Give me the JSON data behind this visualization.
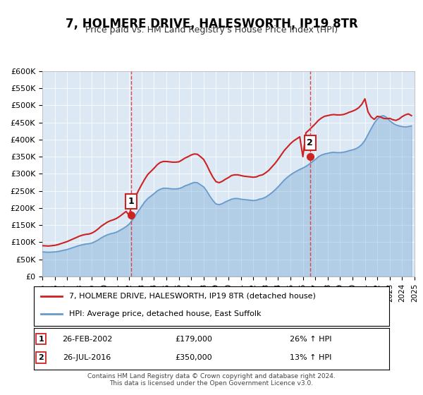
{
  "title_line1": "7, HOLMERE DRIVE, HALESWORTH, IP19 8TR",
  "title_line2": "Price paid vs. HM Land Registry's House Price Index (HPI)",
  "xlabel": "",
  "ylabel": "",
  "ylim": [
    0,
    600000
  ],
  "yticks": [
    0,
    50000,
    100000,
    150000,
    200000,
    250000,
    300000,
    350000,
    400000,
    450000,
    500000,
    550000,
    600000
  ],
  "ytick_labels": [
    "£0",
    "£50K",
    "£100K",
    "£150K",
    "£200K",
    "£250K",
    "£300K",
    "£350K",
    "£400K",
    "£450K",
    "£500K",
    "£550K",
    "£600K"
  ],
  "hpi_color": "#6699cc",
  "property_color": "#cc2222",
  "marker_color": "#cc2222",
  "vline_color": "#dd4444",
  "background_color": "#dce9f5",
  "plot_bg": "#dce9f5",
  "legend_label_property": "7, HOLMERE DRIVE, HALESWORTH, IP19 8TR (detached house)",
  "legend_label_hpi": "HPI: Average price, detached house, East Suffolk",
  "purchase1_date": "26-FEB-2002",
  "purchase1_price": "£179,000",
  "purchase1_hpi": "26% ↑ HPI",
  "purchase1_year": 2002.15,
  "purchase1_value": 179000,
  "purchase2_date": "26-JUL-2016",
  "purchase2_price": "£350,000",
  "purchase2_hpi": "13% ↑ HPI",
  "purchase2_year": 2016.57,
  "purchase2_value": 350000,
  "footer_line1": "Contains HM Land Registry data © Crown copyright and database right 2024.",
  "footer_line2": "This data is licensed under the Open Government Licence v3.0.",
  "hpi_years": [
    1995.0,
    1995.25,
    1995.5,
    1995.75,
    1996.0,
    1996.25,
    1996.5,
    1996.75,
    1997.0,
    1997.25,
    1997.5,
    1997.75,
    1998.0,
    1998.25,
    1998.5,
    1998.75,
    1999.0,
    1999.25,
    1999.5,
    1999.75,
    2000.0,
    2000.25,
    2000.5,
    2000.75,
    2001.0,
    2001.25,
    2001.5,
    2001.75,
    2002.0,
    2002.25,
    2002.5,
    2002.75,
    2003.0,
    2003.25,
    2003.5,
    2003.75,
    2004.0,
    2004.25,
    2004.5,
    2004.75,
    2005.0,
    2005.25,
    2005.5,
    2005.75,
    2006.0,
    2006.25,
    2006.5,
    2006.75,
    2007.0,
    2007.25,
    2007.5,
    2007.75,
    2008.0,
    2008.25,
    2008.5,
    2008.75,
    2009.0,
    2009.25,
    2009.5,
    2009.75,
    2010.0,
    2010.25,
    2010.5,
    2010.75,
    2011.0,
    2011.25,
    2011.5,
    2011.75,
    2012.0,
    2012.25,
    2012.5,
    2012.75,
    2013.0,
    2013.25,
    2013.5,
    2013.75,
    2014.0,
    2014.25,
    2014.5,
    2014.75,
    2015.0,
    2015.25,
    2015.5,
    2015.75,
    2016.0,
    2016.25,
    2016.5,
    2016.75,
    2017.0,
    2017.25,
    2017.5,
    2017.75,
    2018.0,
    2018.25,
    2018.5,
    2018.75,
    2019.0,
    2019.25,
    2019.5,
    2019.75,
    2020.0,
    2020.25,
    2020.5,
    2020.75,
    2021.0,
    2021.25,
    2021.5,
    2021.75,
    2022.0,
    2022.25,
    2022.5,
    2022.75,
    2023.0,
    2023.25,
    2023.5,
    2023.75,
    2024.0,
    2024.25,
    2024.5,
    2024.75
  ],
  "hpi_values": [
    72000,
    71500,
    71000,
    71500,
    72000,
    73000,
    75000,
    77000,
    79000,
    82000,
    85000,
    88000,
    91000,
    93000,
    95000,
    96000,
    98000,
    102000,
    107000,
    113000,
    118000,
    122000,
    125000,
    127000,
    130000,
    135000,
    140000,
    146000,
    153000,
    165000,
    178000,
    192000,
    205000,
    218000,
    228000,
    235000,
    242000,
    250000,
    255000,
    258000,
    258000,
    257000,
    256000,
    256000,
    257000,
    260000,
    265000,
    268000,
    272000,
    275000,
    274000,
    268000,
    262000,
    250000,
    235000,
    222000,
    212000,
    210000,
    213000,
    218000,
    222000,
    226000,
    228000,
    228000,
    226000,
    225000,
    224000,
    223000,
    222000,
    223000,
    226000,
    228000,
    232000,
    238000,
    245000,
    253000,
    262000,
    272000,
    282000,
    290000,
    297000,
    303000,
    308000,
    313000,
    317000,
    322000,
    328000,
    335000,
    342000,
    350000,
    355000,
    358000,
    360000,
    362000,
    363000,
    362000,
    362000,
    363000,
    365000,
    368000,
    370000,
    373000,
    378000,
    386000,
    398000,
    415000,
    432000,
    448000,
    460000,
    468000,
    470000,
    465000,
    455000,
    448000,
    443000,
    440000,
    438000,
    437000,
    438000,
    440000
  ],
  "prop_years": [
    1995.0,
    1995.25,
    1995.5,
    1995.75,
    1996.0,
    1996.25,
    1996.5,
    1996.75,
    1997.0,
    1997.25,
    1997.5,
    1997.75,
    1998.0,
    1998.25,
    1998.5,
    1998.75,
    1999.0,
    1999.25,
    1999.5,
    1999.75,
    2000.0,
    2000.25,
    2000.5,
    2000.75,
    2001.0,
    2001.25,
    2001.5,
    2001.75,
    2002.0,
    2002.25,
    2002.5,
    2002.75,
    2003.0,
    2003.25,
    2003.5,
    2003.75,
    2004.0,
    2004.25,
    2004.5,
    2004.75,
    2005.0,
    2005.25,
    2005.5,
    2005.75,
    2006.0,
    2006.25,
    2006.5,
    2006.75,
    2007.0,
    2007.25,
    2007.5,
    2007.75,
    2008.0,
    2008.25,
    2008.5,
    2008.75,
    2009.0,
    2009.25,
    2009.5,
    2009.75,
    2010.0,
    2010.25,
    2010.5,
    2010.75,
    2011.0,
    2011.25,
    2011.5,
    2011.75,
    2012.0,
    2012.25,
    2012.5,
    2012.75,
    2013.0,
    2013.25,
    2013.5,
    2013.75,
    2014.0,
    2014.25,
    2014.5,
    2014.75,
    2015.0,
    2015.25,
    2015.5,
    2015.75,
    2016.0,
    2016.25,
    2016.5,
    2016.75,
    2017.0,
    2017.25,
    2017.5,
    2017.75,
    2018.0,
    2018.25,
    2018.5,
    2018.75,
    2019.0,
    2019.25,
    2019.5,
    2019.75,
    2020.0,
    2020.25,
    2020.5,
    2020.75,
    2021.0,
    2021.25,
    2021.5,
    2021.75,
    2022.0,
    2022.25,
    2022.5,
    2022.75,
    2023.0,
    2023.25,
    2023.5,
    2023.75,
    2024.0,
    2024.25,
    2024.5,
    2024.75
  ],
  "prop_values": [
    90000,
    89500,
    89000,
    90000,
    91000,
    93000,
    96000,
    99000,
    102000,
    106000,
    110000,
    114000,
    118000,
    121000,
    123000,
    124000,
    127000,
    132000,
    139000,
    147000,
    153000,
    159000,
    163000,
    166000,
    170000,
    176000,
    183000,
    190000,
    179000,
    215000,
    232000,
    251000,
    268000,
    284000,
    298000,
    307000,
    316000,
    326000,
    333000,
    336000,
    336000,
    335000,
    334000,
    334000,
    335000,
    340000,
    346000,
    350000,
    355000,
    358000,
    357000,
    350000,
    342000,
    326000,
    307000,
    290000,
    277000,
    274000,
    278000,
    284000,
    289000,
    295000,
    297000,
    297000,
    295000,
    293000,
    292000,
    291000,
    290000,
    291000,
    295000,
    297000,
    303000,
    310000,
    320000,
    330000,
    342000,
    355000,
    368000,
    378000,
    388000,
    396000,
    402000,
    408000,
    350000,
    420000,
    428000,
    437000,
    446000,
    456000,
    463000,
    468000,
    470000,
    472000,
    473000,
    472000,
    472000,
    473000,
    476000,
    480000,
    483000,
    487000,
    493000,
    503000,
    519000,
    481000,
    466000,
    459000,
    468000,
    466000,
    462000,
    461000,
    462000,
    458000,
    456000,
    460000,
    467000,
    472000,
    475000,
    470000
  ]
}
